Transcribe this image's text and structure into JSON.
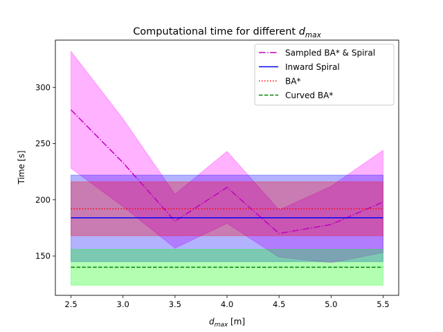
{
  "chart_data": {
    "type": "line",
    "title": "Computational time for different ",
    "title_math": "d",
    "title_math_sub": "max",
    "xlabel_math": "d",
    "xlabel_math_sub": "max",
    "xlabel": " [m]",
    "ylabel": "Time [s]",
    "xlim": [
      2.35,
      5.65
    ],
    "ylim": [
      115,
      342
    ],
    "xticks": [
      2.5,
      3.0,
      3.5,
      4.0,
      4.5,
      5.0,
      5.5
    ],
    "xtick_labels": [
      "2.5",
      "3.0",
      "3.5",
      "4.0",
      "4.5",
      "5.0",
      "5.5"
    ],
    "yticks": [
      150,
      200,
      250,
      300
    ],
    "ytick_labels": [
      "150",
      "200",
      "250",
      "300"
    ],
    "grid": false,
    "legend_position": "top-right",
    "x": [
      2.5,
      3.0,
      3.5,
      4.0,
      4.5,
      5.0,
      5.5
    ],
    "series": [
      {
        "name": "Sampled BA* & Spiral",
        "color": "#bf00bf",
        "fill_color": "#ff00ff",
        "dash": "dashdot",
        "values": [
          280,
          233,
          181,
          211,
          170,
          178,
          198
        ],
        "upper": [
          332,
          272,
          205,
          243,
          191,
          212,
          244
        ],
        "lower": [
          228,
          194,
          157,
          179,
          149,
          144,
          153
        ]
      },
      {
        "name": "Inward Spiral",
        "color": "#0000ff",
        "fill_color": "#0000ff",
        "dash": "solid",
        "values": [
          184,
          184,
          184,
          184,
          184,
          184,
          184
        ],
        "upper": [
          222,
          222,
          222,
          222,
          222,
          222,
          222
        ],
        "lower": [
          145,
          145,
          145,
          145,
          145,
          145,
          145
        ]
      },
      {
        "name": "BA*",
        "color": "#ff0000",
        "fill_color": "#ff0000",
        "dash": "dotted",
        "values": [
          192,
          192,
          192,
          192,
          192,
          192,
          192
        ],
        "upper": [
          216,
          216,
          216,
          216,
          216,
          216,
          216
        ],
        "lower": [
          168,
          168,
          168,
          168,
          168,
          168,
          168
        ]
      },
      {
        "name": "Curved BA*",
        "color": "#008000",
        "fill_color": "#00ff00",
        "dash": "dashed",
        "values": [
          140,
          140,
          140,
          140,
          140,
          140,
          140
        ],
        "upper": [
          156,
          156,
          156,
          156,
          156,
          156,
          156
        ],
        "lower": [
          124,
          124,
          124,
          124,
          124,
          124,
          124
        ]
      }
    ]
  }
}
